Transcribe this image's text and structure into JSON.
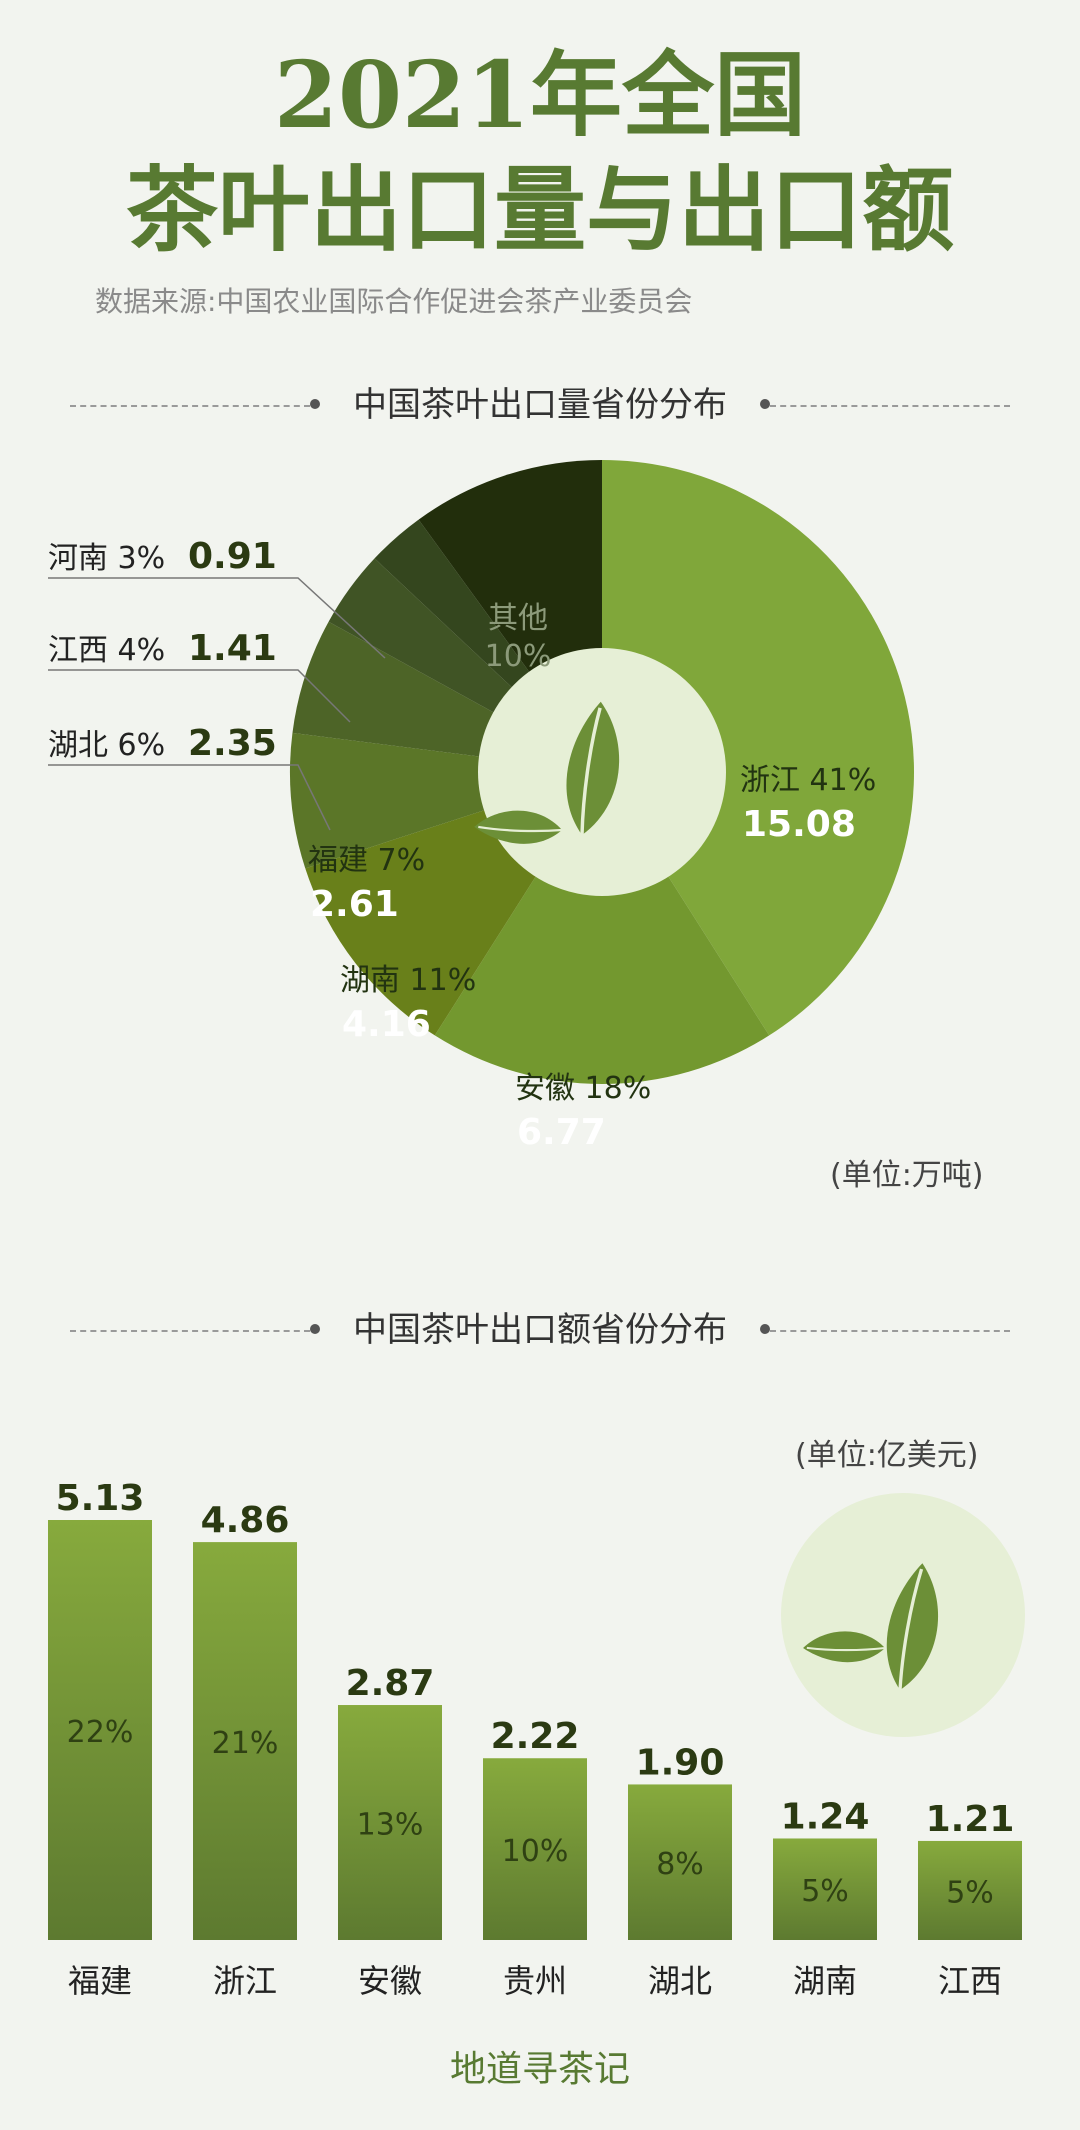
{
  "header": {
    "title_line1": "2021年全国",
    "title_line2": "茶叶出口量与出口额",
    "source": "数据来源:中国农业国际合作促进会茶产业委员会"
  },
  "sections": {
    "volume_title": "中国茶叶出口量省份分布",
    "value_title": "中国茶叶出口额省份分布"
  },
  "footer": {
    "brand": "地道寻茶记"
  },
  "colors": {
    "accent": "#587a32",
    "pie_light": "#7fa83a",
    "dark": "#1f2e0e"
  },
  "chart_data": [
    {
      "type": "pie",
      "title": "中国茶叶出口量省份分布",
      "unit": "(单位:万吨)",
      "slices": [
        {
          "label": "浙江",
          "percent": "41%",
          "percent_value": 41,
          "value": "15.08",
          "color": "#80a73a"
        },
        {
          "label": "安徽",
          "percent": "18%",
          "percent_value": 18,
          "value": "6.77",
          "color": "#73982f"
        },
        {
          "label": "湖南",
          "percent": "11%",
          "percent_value": 11,
          "value": "4.16",
          "color": "#69801a"
        },
        {
          "label": "福建",
          "percent": "7%",
          "percent_value": 7,
          "value": "2.61",
          "color": "#5b7628"
        },
        {
          "label": "湖北",
          "percent": "6%",
          "percent_value": 6,
          "value": "2.35",
          "color": "#4d6427"
        },
        {
          "label": "江西",
          "percent": "4%",
          "percent_value": 4,
          "value": "1.41",
          "color": "#405425"
        },
        {
          "label": "河南",
          "percent": "3%",
          "percent_value": 3,
          "value": "0.91",
          "color": "#34461e"
        },
        {
          "label": "其他",
          "percent": "10%",
          "percent_value": 10,
          "value": "",
          "color": "#222e0c"
        }
      ]
    },
    {
      "type": "bar",
      "title": "中国茶叶出口额省份分布",
      "unit": "(单位:亿美元)",
      "categories": [
        "福建",
        "浙江",
        "安徽",
        "贵州",
        "湖北",
        "湖南",
        "江西"
      ],
      "values": [
        5.13,
        4.86,
        2.87,
        2.22,
        1.9,
        1.24,
        1.21
      ],
      "value_labels": [
        "5.13",
        "4.86",
        "2.87",
        "2.22",
        "1.90",
        "1.24",
        "1.21"
      ],
      "percents": [
        "22%",
        "21%",
        "13%",
        "10%",
        "8%",
        "5%",
        "5%"
      ]
    }
  ]
}
